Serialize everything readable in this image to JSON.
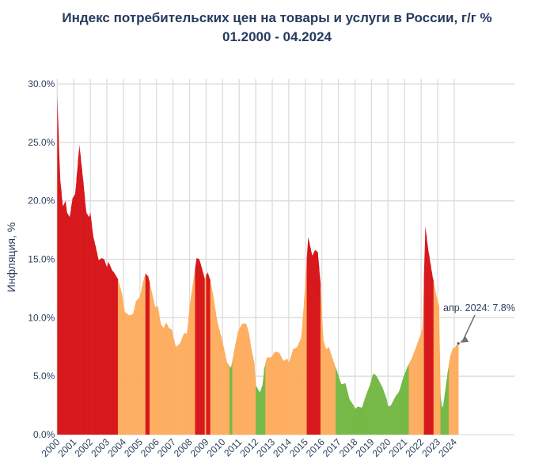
{
  "chart_data": {
    "type": "area",
    "title": "Индекс потребительских цен на товары и услуги в России, г/г %",
    "subtitle": "01.2000 - 04.2024",
    "xlabel": "",
    "ylabel": "Инфляция, %",
    "ylim": [
      0,
      30
    ],
    "yticks": [
      "0.0%",
      "5.0%",
      "10.0%",
      "15.0%",
      "20.0%",
      "25.0%",
      "30.0%"
    ],
    "xticks": [
      "2000",
      "2001",
      "2002",
      "2003",
      "2004",
      "2005",
      "2006",
      "2007",
      "2008",
      "2009",
      "2010",
      "2011",
      "2012",
      "2013",
      "2014",
      "2015",
      "2016",
      "2017",
      "2018",
      "2019",
      "2020",
      "2021",
      "2022",
      "2023",
      "2024"
    ],
    "grid": true,
    "colors": {
      "high": "#d7191c",
      "mid": "#fdae61",
      "low": "#76b947"
    },
    "color_thresholds": [
      6.0,
      13.5
    ],
    "annotation": {
      "text": "апр. 2024: 7.8%",
      "date": "2024-04",
      "value": 7.8,
      "arrow_color": "#707070"
    },
    "points": [
      [
        "2000-01",
        29.0
      ],
      [
        "2000-03",
        22.0
      ],
      [
        "2000-05",
        19.5
      ],
      [
        "2000-07",
        20.0
      ],
      [
        "2000-08",
        19.0
      ],
      [
        "2000-10",
        18.6
      ],
      [
        "2000-12",
        20.2
      ],
      [
        "2001-02",
        20.6
      ],
      [
        "2001-05",
        24.8
      ],
      [
        "2001-08",
        21.5
      ],
      [
        "2001-10",
        19.0
      ],
      [
        "2001-12",
        18.6
      ],
      [
        "2002-01",
        19.0
      ],
      [
        "2002-03",
        17.0
      ],
      [
        "2002-05",
        16.0
      ],
      [
        "2002-07",
        14.9
      ],
      [
        "2002-09",
        15.1
      ],
      [
        "2002-11",
        15.0
      ],
      [
        "2003-01",
        14.3
      ],
      [
        "2003-02",
        14.8
      ],
      [
        "2003-05",
        14.0
      ],
      [
        "2003-06",
        13.9
      ],
      [
        "2003-09",
        13.3
      ],
      [
        "2003-12",
        12.0
      ],
      [
        "2004-02",
        10.5
      ],
      [
        "2004-05",
        10.2
      ],
      [
        "2004-08",
        10.3
      ],
      [
        "2004-10",
        11.4
      ],
      [
        "2005-01",
        11.8
      ],
      [
        "2005-03",
        13.0
      ],
      [
        "2005-05",
        13.8
      ],
      [
        "2005-07",
        13.5
      ],
      [
        "2005-09",
        12.5
      ],
      [
        "2005-12",
        10.9
      ],
      [
        "2006-02",
        11.0
      ],
      [
        "2006-04",
        9.5
      ],
      [
        "2006-06",
        9.1
      ],
      [
        "2006-08",
        9.6
      ],
      [
        "2006-10",
        9.1
      ],
      [
        "2006-12",
        9.0
      ],
      [
        "2007-03",
        7.5
      ],
      [
        "2007-06",
        7.8
      ],
      [
        "2007-09",
        8.7
      ],
      [
        "2007-11",
        8.6
      ],
      [
        "2008-01",
        11.0
      ],
      [
        "2008-03",
        12.6
      ],
      [
        "2008-06",
        15.1
      ],
      [
        "2008-08",
        15.0
      ],
      [
        "2008-10",
        14.2
      ],
      [
        "2008-12",
        13.3
      ],
      [
        "2009-02",
        13.9
      ],
      [
        "2009-04",
        13.2
      ],
      [
        "2009-06",
        12.0
      ],
      [
        "2009-09",
        9.7
      ],
      [
        "2010-01",
        7.9
      ],
      [
        "2010-04",
        6.2
      ],
      [
        "2010-07",
        5.7
      ],
      [
        "2010-09",
        7.0
      ],
      [
        "2010-12",
        8.8
      ],
      [
        "2011-03",
        9.5
      ],
      [
        "2011-06",
        9.5
      ],
      [
        "2011-08",
        8.7
      ],
      [
        "2011-10",
        7.2
      ],
      [
        "2011-12",
        6.1
      ],
      [
        "2012-01",
        4.2
      ],
      [
        "2012-04",
        3.6
      ],
      [
        "2012-06",
        4.3
      ],
      [
        "2012-07",
        5.6
      ],
      [
        "2012-09",
        6.6
      ],
      [
        "2012-12",
        6.6
      ],
      [
        "2013-03",
        7.1
      ],
      [
        "2013-06",
        7.0
      ],
      [
        "2013-09",
        6.3
      ],
      [
        "2013-12",
        6.5
      ],
      [
        "2014-01",
        6.1
      ],
      [
        "2014-04",
        7.3
      ],
      [
        "2014-07",
        7.5
      ],
      [
        "2014-10",
        8.3
      ],
      [
        "2014-12",
        11.4
      ],
      [
        "2015-03",
        16.9
      ],
      [
        "2015-06",
        15.3
      ],
      [
        "2015-08",
        15.8
      ],
      [
        "2015-10",
        15.6
      ],
      [
        "2015-12",
        12.9
      ],
      [
        "2016-02",
        8.1
      ],
      [
        "2016-04",
        7.3
      ],
      [
        "2016-06",
        7.5
      ],
      [
        "2016-09",
        6.4
      ],
      [
        "2016-12",
        5.4
      ],
      [
        "2017-03",
        4.3
      ],
      [
        "2017-06",
        4.4
      ],
      [
        "2017-09",
        3.0
      ],
      [
        "2017-12",
        2.5
      ],
      [
        "2018-01",
        2.2
      ],
      [
        "2018-03",
        2.4
      ],
      [
        "2018-06",
        2.3
      ],
      [
        "2018-09",
        3.4
      ],
      [
        "2018-12",
        4.3
      ],
      [
        "2019-02",
        5.2
      ],
      [
        "2019-04",
        5.1
      ],
      [
        "2019-06",
        4.7
      ],
      [
        "2019-09",
        4.0
      ],
      [
        "2019-12",
        3.0
      ],
      [
        "2020-01",
        2.4
      ],
      [
        "2020-03",
        2.5
      ],
      [
        "2020-06",
        3.2
      ],
      [
        "2020-09",
        3.7
      ],
      [
        "2020-12",
        4.9
      ],
      [
        "2021-03",
        5.8
      ],
      [
        "2021-06",
        6.5
      ],
      [
        "2021-09",
        7.4
      ],
      [
        "2021-12",
        8.4
      ],
      [
        "2022-01",
        8.7
      ],
      [
        "2022-02",
        9.2
      ],
      [
        "2022-04",
        17.8
      ],
      [
        "2022-06",
        15.9
      ],
      [
        "2022-09",
        13.7
      ],
      [
        "2022-12",
        11.9
      ],
      [
        "2023-02",
        11.0
      ],
      [
        "2023-03",
        3.5
      ],
      [
        "2023-04",
        2.3
      ],
      [
        "2023-05",
        2.5
      ],
      [
        "2023-07",
        4.3
      ],
      [
        "2023-09",
        6.0
      ],
      [
        "2023-10",
        6.7
      ],
      [
        "2023-12",
        7.4
      ],
      [
        "2024-01",
        7.4
      ],
      [
        "2024-03",
        7.7
      ],
      [
        "2024-04",
        7.8
      ]
    ]
  }
}
